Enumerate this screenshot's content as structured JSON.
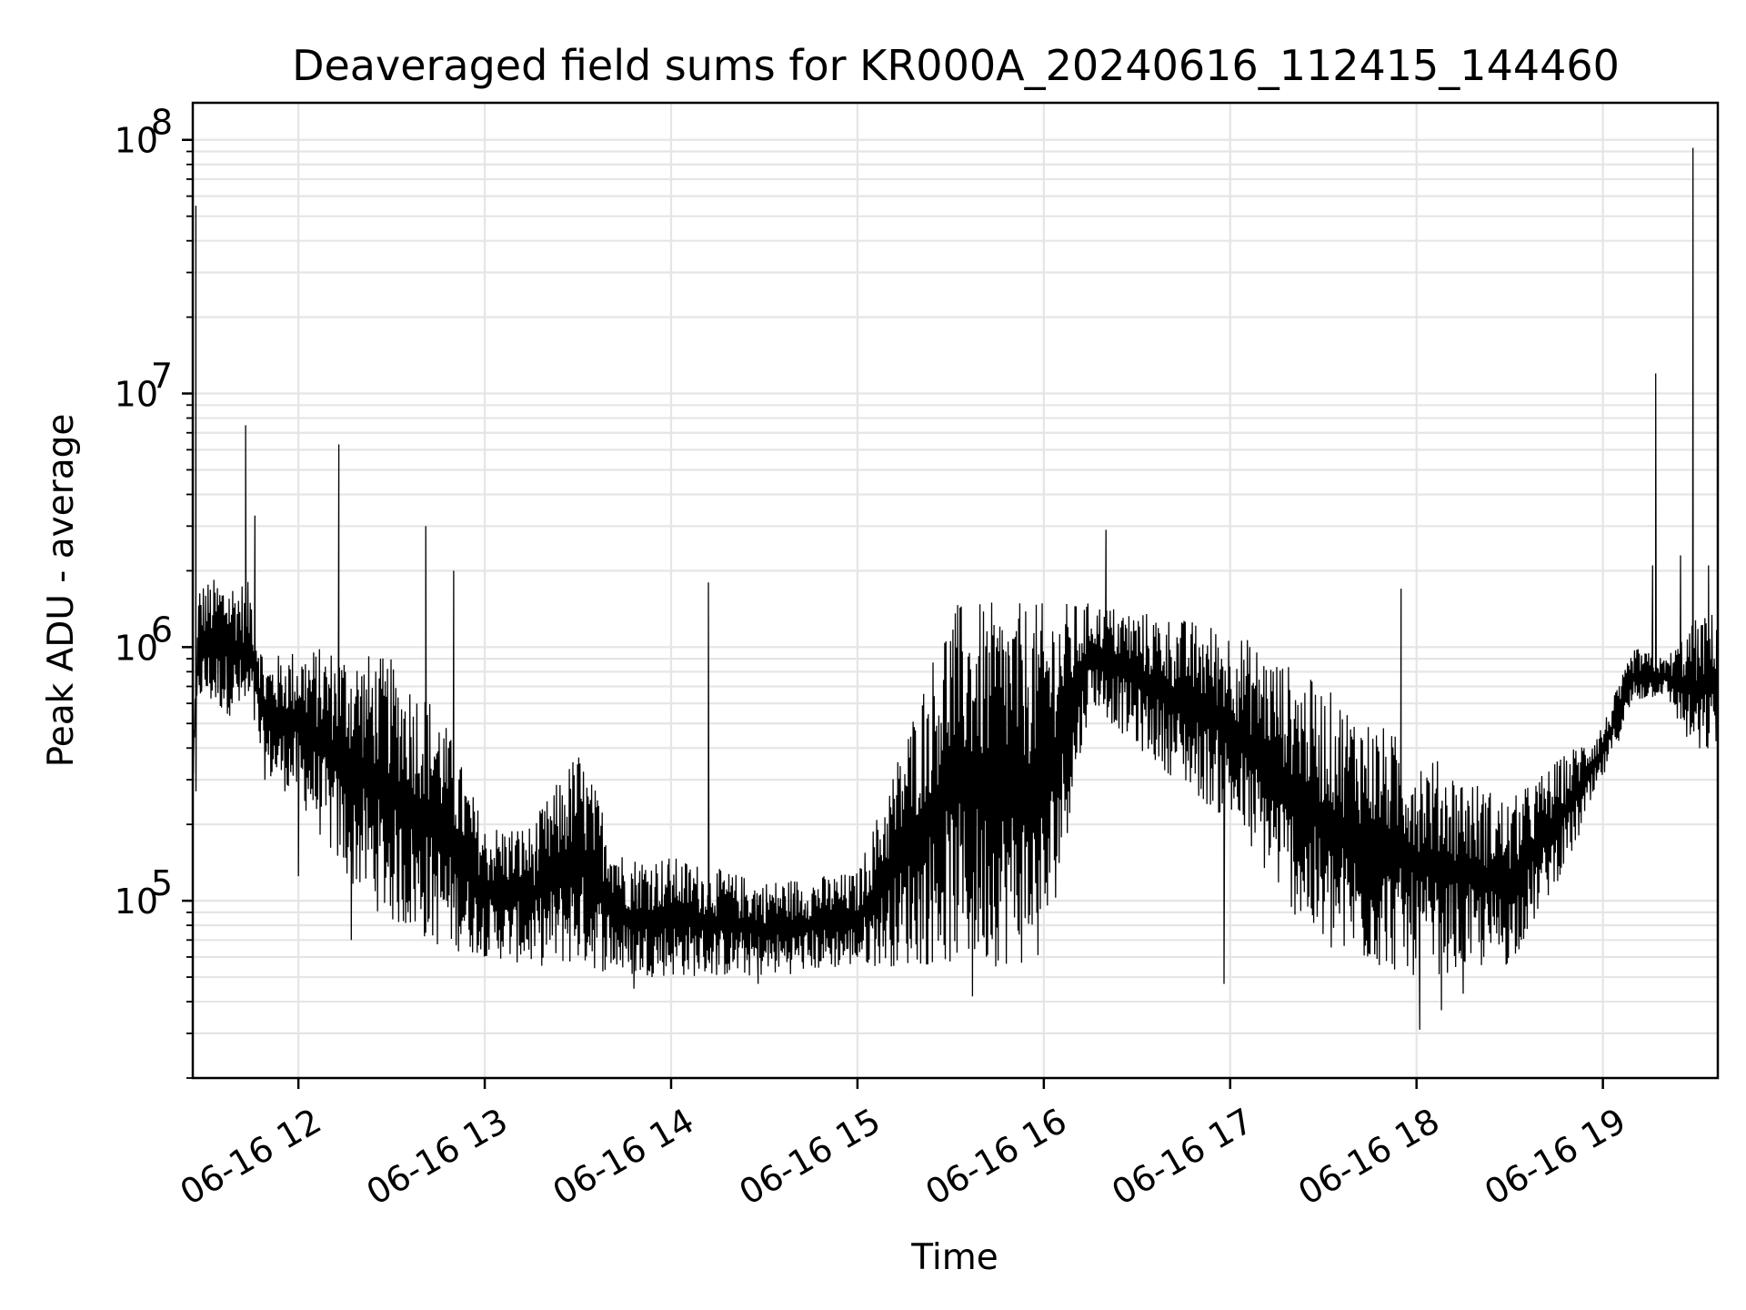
{
  "chart_data": {
    "type": "line",
    "title": "Deaveraged field sums for KR000A_20240616_112415_144460",
    "xlabel": "Time",
    "ylabel": "Peak ADU - average",
    "yscale": "log",
    "ylim": [
      20000,
      140000000
    ],
    "xlim": [
      "2024-06-16 11:26",
      "2024-06-16 19:37"
    ],
    "grid": true,
    "line_color": "#000000",
    "x_tick_labels": [
      "06-16 12",
      "06-16 13",
      "06-16 14",
      "06-16 15",
      "06-16 16",
      "06-16 17",
      "06-16 18",
      "06-16 19"
    ],
    "x_tick_times": [
      "2024-06-16 12:00",
      "2024-06-16 13:00",
      "2024-06-16 14:00",
      "2024-06-16 15:00",
      "2024-06-16 16:00",
      "2024-06-16 17:00",
      "2024-06-16 18:00",
      "2024-06-16 19:00"
    ],
    "y_ticks": [
      {
        "value": 100000,
        "base": "10",
        "exp": "5"
      },
      {
        "value": 1000000,
        "base": "10",
        "exp": "6"
      },
      {
        "value": 10000000,
        "base": "10",
        "exp": "7"
      },
      {
        "value": 100000000,
        "base": "10",
        "exp": "8"
      }
    ],
    "series": [
      {
        "envelope": [
          {
            "x": "2024-06-16 11:26",
            "low": 280000,
            "high": 380000
          },
          {
            "x": "2024-06-16 11:28",
            "low": 600000,
            "high": 1800000
          },
          {
            "x": "2024-06-16 11:35",
            "low": 550000,
            "high": 1900000
          },
          {
            "x": "2024-06-16 11:45",
            "low": 500000,
            "high": 1800000
          },
          {
            "x": "2024-06-16 11:49",
            "low": 300000,
            "high": 900000
          },
          {
            "x": "2024-06-16 12:00",
            "low": 250000,
            "high": 1000000
          },
          {
            "x": "2024-06-16 12:15",
            "low": 120000,
            "high": 1000000
          },
          {
            "x": "2024-06-16 12:30",
            "low": 80000,
            "high": 900000
          },
          {
            "x": "2024-06-16 12:45",
            "low": 65000,
            "high": 600000
          },
          {
            "x": "2024-06-16 13:00",
            "low": 60000,
            "high": 200000
          },
          {
            "x": "2024-06-16 13:15",
            "low": 55000,
            "high": 200000
          },
          {
            "x": "2024-06-16 13:30",
            "low": 55000,
            "high": 400000
          },
          {
            "x": "2024-06-16 13:45",
            "low": 50000,
            "high": 150000
          },
          {
            "x": "2024-06-16 14:00",
            "low": 50000,
            "high": 150000
          },
          {
            "x": "2024-06-16 14:30",
            "low": 50000,
            "high": 120000
          },
          {
            "x": "2024-06-16 15:00",
            "low": 55000,
            "high": 130000
          },
          {
            "x": "2024-06-16 15:30",
            "low": 55000,
            "high": 1500000
          },
          {
            "x": "2024-06-16 16:00",
            "low": 55000,
            "high": 1500000
          },
          {
            "x": "2024-06-16 16:15",
            "low": 600000,
            "high": 1500000
          },
          {
            "x": "2024-06-16 16:30",
            "low": 400000,
            "high": 1400000
          },
          {
            "x": "2024-06-16 17:00",
            "low": 200000,
            "high": 1200000
          },
          {
            "x": "2024-06-16 17:30",
            "low": 60000,
            "high": 700000
          },
          {
            "x": "2024-06-16 18:00",
            "low": 50000,
            "high": 400000
          },
          {
            "x": "2024-06-16 18:30",
            "low": 55000,
            "high": 250000
          },
          {
            "x": "2024-06-16 18:50",
            "low": 150000,
            "high": 400000
          },
          {
            "x": "2024-06-16 19:00",
            "low": 300000,
            "high": 500000
          },
          {
            "x": "2024-06-16 19:10",
            "low": 600000,
            "high": 1000000
          },
          {
            "x": "2024-06-16 19:20",
            "low": 650000,
            "high": 900000
          },
          {
            "x": "2024-06-16 19:30",
            "low": 350000,
            "high": 1300000
          },
          {
            "x": "2024-06-16 19:37",
            "low": 400000,
            "high": 1400000
          }
        ],
        "spikes": [
          {
            "x": "2024-06-16 11:27",
            "value": 55000000
          },
          {
            "x": "2024-06-16 11:43",
            "value": 7500000
          },
          {
            "x": "2024-06-16 11:46",
            "value": 3300000
          },
          {
            "x": "2024-06-16 12:13",
            "value": 6300000
          },
          {
            "x": "2024-06-16 12:41",
            "value": 3000000
          },
          {
            "x": "2024-06-16 12:50",
            "value": 2000000
          },
          {
            "x": "2024-06-16 14:12",
            "value": 1800000
          },
          {
            "x": "2024-06-16 16:20",
            "value": 2900000
          },
          {
            "x": "2024-06-16 17:55",
            "value": 1700000
          },
          {
            "x": "2024-06-16 19:16",
            "value": 2100000
          },
          {
            "x": "2024-06-16 19:17",
            "value": 12000000
          },
          {
            "x": "2024-06-16 19:25",
            "value": 2300000
          },
          {
            "x": "2024-06-16 19:29",
            "value": 93000000
          },
          {
            "x": "2024-06-16 19:34",
            "value": 2100000
          }
        ],
        "dips": [
          {
            "x": "2024-06-16 11:27",
            "value": 270000
          },
          {
            "x": "2024-06-16 12:00",
            "value": 125000
          },
          {
            "x": "2024-06-16 12:17",
            "value": 70000
          },
          {
            "x": "2024-06-16 13:48",
            "value": 45000
          },
          {
            "x": "2024-06-16 14:28",
            "value": 47000
          },
          {
            "x": "2024-06-16 15:37",
            "value": 42000
          },
          {
            "x": "2024-06-16 16:58",
            "value": 47000
          },
          {
            "x": "2024-06-16 18:01",
            "value": 31000
          },
          {
            "x": "2024-06-16 18:08",
            "value": 37000
          },
          {
            "x": "2024-06-16 18:15",
            "value": 43000
          }
        ]
      }
    ]
  }
}
